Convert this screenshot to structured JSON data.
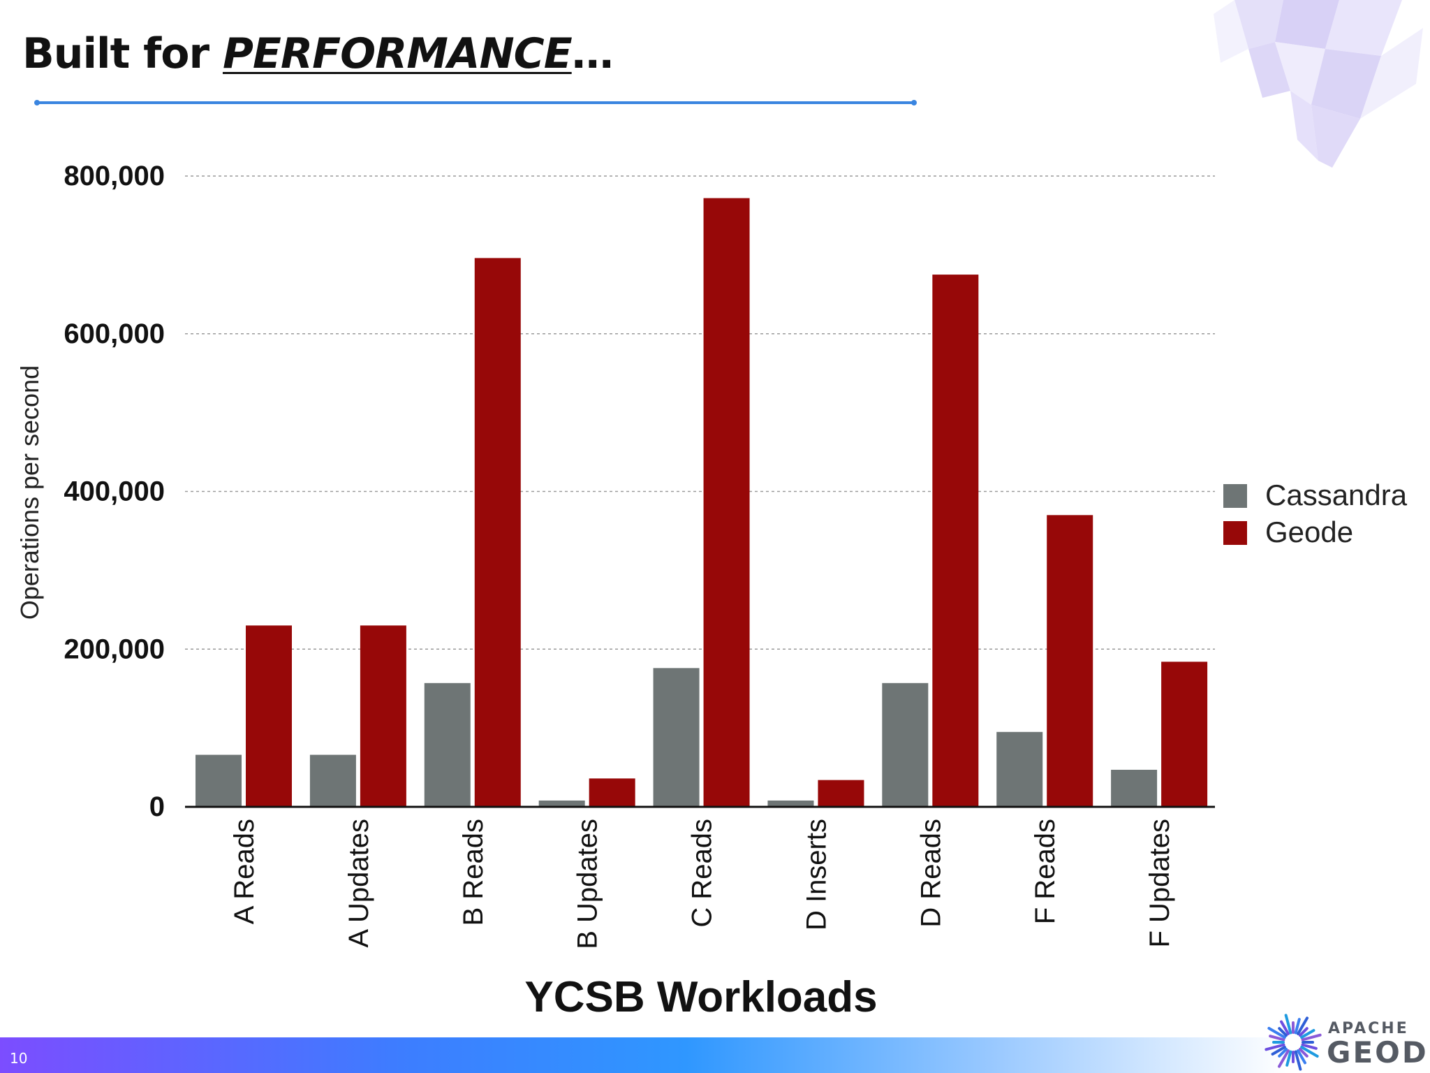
{
  "slide": {
    "title_prefix": "Built for ",
    "title_emphasis": "PERFORMANCE",
    "title_suffix": "…",
    "page_number": "10",
    "logo": {
      "line1": "APACHE",
      "line2": "GEODE"
    }
  },
  "colors": {
    "cassandra": "#6e7575",
    "geode": "#970808",
    "rule": "#3a85e0",
    "gridline": "#9a9a9a"
  },
  "chart_data": {
    "type": "bar",
    "categories": [
      "A Reads",
      "A Updates",
      "B Reads",
      "B Updates",
      "C Reads",
      "D Inserts",
      "D Reads",
      "F Reads",
      "F Updates"
    ],
    "series": [
      {
        "name": "Cassandra",
        "values": [
          66000,
          66000,
          157000,
          8000,
          176000,
          8000,
          157000,
          95000,
          47000
        ]
      },
      {
        "name": "Geode",
        "values": [
          230000,
          230000,
          696000,
          36000,
          772000,
          34000,
          675000,
          370000,
          184000
        ]
      }
    ],
    "xlabel": "YCSB Workloads",
    "ylabel": "Operations per second",
    "ylim": [
      0,
      800000
    ],
    "yticks": [
      0,
      200000,
      400000,
      600000,
      800000
    ],
    "ytick_labels": [
      "0",
      "200,000",
      "400,000",
      "600,000",
      "800,000"
    ],
    "grid": true,
    "legend_position": "right"
  }
}
